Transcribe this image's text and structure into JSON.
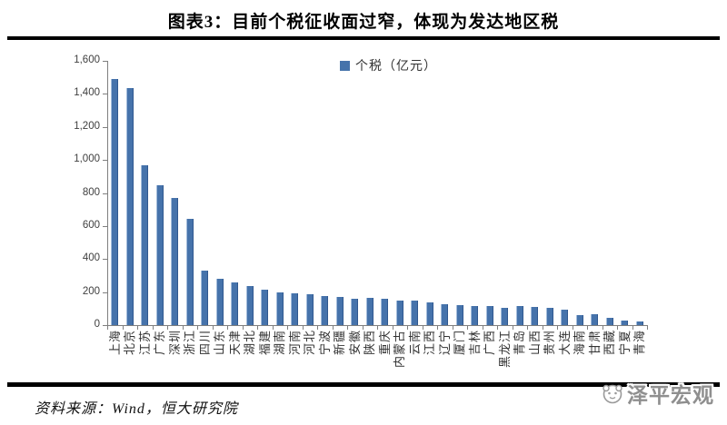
{
  "page": {
    "title": "图表3：目前个税征收面过窄，体现为发达地区税",
    "source_note": "资料来源：Wind，恒大研究院",
    "watermark": "泽平宏观",
    "accent_color": "#4673ab"
  },
  "chart_data": {
    "type": "bar",
    "title": "图表3：目前个税征收面过窄，体现为发达地区税",
    "legend": [
      "个税（亿元）"
    ],
    "legend_position": "top-center",
    "xlabel": "",
    "ylabel": "",
    "ylim": [
      0,
      1600
    ],
    "ytick_step": 200,
    "yticks": [
      "0",
      "200",
      "400",
      "600",
      "800",
      "1,000",
      "1,200",
      "1,400",
      "1,600"
    ],
    "gridlines": false,
    "bar_color": "#4673ab",
    "categories": [
      "上海",
      "北京",
      "江苏",
      "广东",
      "深圳",
      "浙江",
      "四川",
      "山东",
      "天津",
      "湖北",
      "福建",
      "湖南",
      "河南",
      "河北",
      "宁波",
      "新疆",
      "安徽",
      "陕西",
      "重庆",
      "内蒙古",
      "云南",
      "江西",
      "辽宁",
      "厦门",
      "吉林",
      "广西",
      "黑龙江",
      "青岛",
      "山西",
      "贵州",
      "大连",
      "海南",
      "甘肃",
      "西藏",
      "宁夏",
      "青海"
    ],
    "values": [
      1490,
      1435,
      965,
      845,
      770,
      645,
      330,
      278,
      258,
      238,
      216,
      200,
      193,
      188,
      178,
      172,
      162,
      166,
      160,
      150,
      148,
      140,
      128,
      121,
      114,
      118,
      104,
      115,
      111,
      107,
      95,
      63,
      68,
      45,
      30,
      22
    ]
  }
}
